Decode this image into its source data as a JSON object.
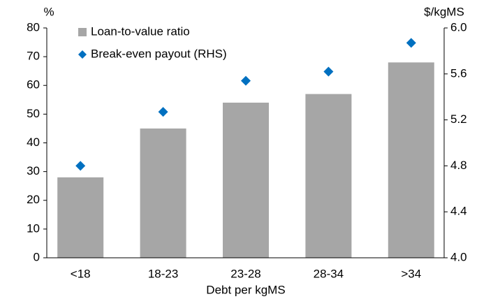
{
  "chart_data": {
    "type": "bar",
    "x_label": "Debt per kgMS",
    "y_label": "%",
    "y2_label": "$/kgMS",
    "categories": [
      "<18",
      "18-23",
      "23-28",
      "28-34",
      ">34"
    ],
    "series": [
      {
        "name": "Loan-to-value ratio",
        "color": "#a6a6a6",
        "values": [
          28,
          45,
          54,
          57,
          68
        ]
      },
      {
        "name": "Break-even payout (RHS)",
        "color": "#0070c0",
        "axis": "y2",
        "values": [
          4.8,
          5.27,
          5.54,
          5.62,
          5.87
        ]
      }
    ],
    "ylim": [
      0,
      80
    ],
    "yticks": [
      0,
      10,
      20,
      30,
      40,
      50,
      60,
      70,
      80
    ],
    "y2lim": [
      4,
      6
    ],
    "y2ticks": [
      {
        "value": 4,
        "label": "4.0"
      },
      4.4,
      4.8,
      5.2,
      5.6,
      {
        "value": 6,
        "label": "6.0"
      }
    ],
    "legend": "top-left"
  }
}
